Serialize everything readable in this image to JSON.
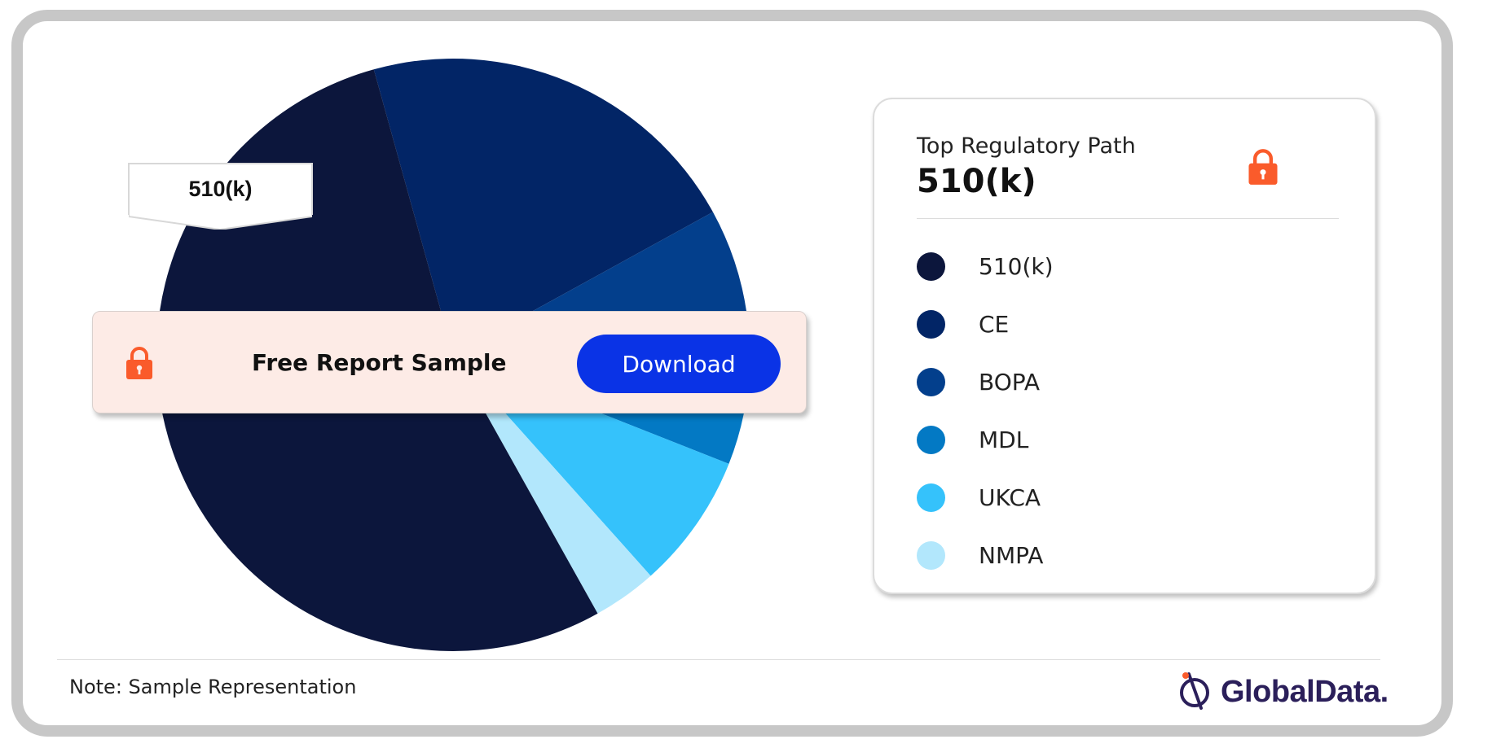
{
  "chart_data": {
    "type": "pie",
    "categories": [
      "510(k)",
      "CE",
      "BOPA",
      "MDL",
      "UKCA",
      "NMPA"
    ],
    "values": [
      53.8,
      21.3,
      8.8,
      5.2,
      7.4,
      3.5
    ],
    "colors": [
      "#0c163c",
      "#022566",
      "#033f8c",
      "#0379c4",
      "#35c2fb",
      "#b2e7fc"
    ],
    "callout_label": "510(k)"
  },
  "banner": {
    "text": "Free Report Sample",
    "button_label": "Download",
    "lock_icon": "lock-icon",
    "accent": "#fa5b2b",
    "button_color": "#0a33e6"
  },
  "legend": {
    "subtitle": "Top Regulatory Path",
    "title": "510(k)",
    "lock_icon": "lock-icon",
    "items": [
      {
        "label": "510(k)",
        "color": "#0c163c"
      },
      {
        "label": "CE",
        "color": "#022566"
      },
      {
        "label": "BOPA",
        "color": "#033f8c"
      },
      {
        "label": "MDL",
        "color": "#0379c4"
      },
      {
        "label": "UKCA",
        "color": "#35c2fb"
      },
      {
        "label": "NMPA",
        "color": "#b2e7fc"
      }
    ]
  },
  "footer": {
    "note": "Note: Sample Representation",
    "logo_text": "GlobalData.",
    "logo_icon": "globaldata-logo-icon"
  }
}
